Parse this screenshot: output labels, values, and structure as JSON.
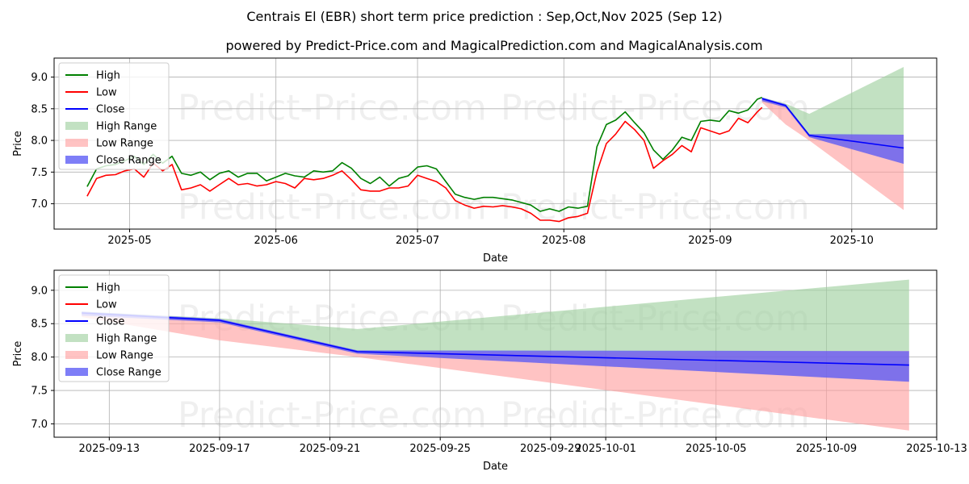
{
  "titles": {
    "line1": "Centrais El (EBR) short term price prediction : Sep,Oct,Nov 2025 (Sep 12)",
    "line2": "powered by Predict-Price.com and MagicalPrediction.com and MagicalAnalysis.com"
  },
  "watermark": "Predict-Price.com",
  "colors": {
    "high": "#008000",
    "low": "#ff0000",
    "close": "#0000ff",
    "high_range": "#9ccf9c",
    "low_range": "#ff9e9e",
    "close_range": "#5a5af5"
  },
  "chart_data": [
    {
      "type": "line",
      "xlabel": "Date",
      "ylabel": "Price",
      "ylim": [
        6.6,
        9.3
      ],
      "yticks": [
        "7.0",
        "7.5",
        "8.0",
        "8.5",
        "9.0"
      ],
      "xticks": [
        "2025-05",
        "2025-06",
        "2025-07",
        "2025-08",
        "2025-09",
        "2025-10"
      ],
      "xlim": [
        "2025-04-15",
        "2025-10-19"
      ],
      "grid": true,
      "legend_position": "upper-left",
      "legend": [
        "High",
        "Low",
        "Close",
        "High Range",
        "Low Range",
        "Close Range"
      ],
      "series": [
        {
          "name": "High",
          "x": [
            "2025-04-22",
            "2025-04-24",
            "2025-04-26",
            "2025-04-28",
            "2025-04-30",
            "2025-05-02",
            "2025-05-04",
            "2025-05-06",
            "2025-05-08",
            "2025-05-10",
            "2025-05-12",
            "2025-05-14",
            "2025-05-16",
            "2025-05-18",
            "2025-05-20",
            "2025-05-22",
            "2025-05-24",
            "2025-05-26",
            "2025-05-28",
            "2025-05-30",
            "2025-06-01",
            "2025-06-03",
            "2025-06-05",
            "2025-06-07",
            "2025-06-09",
            "2025-06-11",
            "2025-06-13",
            "2025-06-15",
            "2025-06-17",
            "2025-06-19",
            "2025-06-21",
            "2025-06-23",
            "2025-06-25",
            "2025-06-27",
            "2025-06-29",
            "2025-07-01",
            "2025-07-03",
            "2025-07-05",
            "2025-07-07",
            "2025-07-09",
            "2025-07-11",
            "2025-07-13",
            "2025-07-15",
            "2025-07-17",
            "2025-07-19",
            "2025-07-21",
            "2025-07-23",
            "2025-07-25",
            "2025-07-27",
            "2025-07-29",
            "2025-07-31",
            "2025-08-02",
            "2025-08-04",
            "2025-08-06",
            "2025-08-08",
            "2025-08-10",
            "2025-08-12",
            "2025-08-14",
            "2025-08-16",
            "2025-08-18",
            "2025-08-20",
            "2025-08-22",
            "2025-08-24",
            "2025-08-26",
            "2025-08-28",
            "2025-08-30",
            "2025-09-01",
            "2025-09-03",
            "2025-09-05",
            "2025-09-07",
            "2025-09-09",
            "2025-09-11",
            "2025-09-12"
          ],
          "values": [
            7.27,
            7.55,
            7.6,
            7.62,
            7.68,
            7.75,
            7.62,
            7.78,
            7.64,
            7.75,
            7.48,
            7.45,
            7.5,
            7.38,
            7.48,
            7.52,
            7.42,
            7.48,
            7.48,
            7.36,
            7.42,
            7.48,
            7.44,
            7.42,
            7.52,
            7.5,
            7.52,
            7.65,
            7.56,
            7.4,
            7.32,
            7.42,
            7.28,
            7.4,
            7.44,
            7.58,
            7.6,
            7.55,
            7.35,
            7.15,
            7.1,
            7.07,
            7.1,
            7.1,
            7.08,
            7.06,
            7.02,
            6.98,
            6.88,
            6.92,
            6.88,
            6.95,
            6.93,
            6.96,
            7.9,
            8.25,
            8.32,
            8.45,
            8.28,
            8.12,
            7.85,
            7.7,
            7.85,
            8.05,
            8.0,
            8.3,
            8.32,
            8.3,
            8.47,
            8.43,
            8.48,
            8.65,
            8.68
          ]
        },
        {
          "name": "Low",
          "x": [
            "2025-04-22",
            "2025-04-24",
            "2025-04-26",
            "2025-04-28",
            "2025-04-30",
            "2025-05-02",
            "2025-05-04",
            "2025-05-06",
            "2025-05-08",
            "2025-05-10",
            "2025-05-12",
            "2025-05-14",
            "2025-05-16",
            "2025-05-18",
            "2025-05-20",
            "2025-05-22",
            "2025-05-24",
            "2025-05-26",
            "2025-05-28",
            "2025-05-30",
            "2025-06-01",
            "2025-06-03",
            "2025-06-05",
            "2025-06-07",
            "2025-06-09",
            "2025-06-11",
            "2025-06-13",
            "2025-06-15",
            "2025-06-17",
            "2025-06-19",
            "2025-06-21",
            "2025-06-23",
            "2025-06-25",
            "2025-06-27",
            "2025-06-29",
            "2025-07-01",
            "2025-07-03",
            "2025-07-05",
            "2025-07-07",
            "2025-07-09",
            "2025-07-11",
            "2025-07-13",
            "2025-07-15",
            "2025-07-17",
            "2025-07-19",
            "2025-07-21",
            "2025-07-23",
            "2025-07-25",
            "2025-07-27",
            "2025-07-29",
            "2025-07-31",
            "2025-08-02",
            "2025-08-04",
            "2025-08-06",
            "2025-08-08",
            "2025-08-10",
            "2025-08-12",
            "2025-08-14",
            "2025-08-16",
            "2025-08-18",
            "2025-08-20",
            "2025-08-22",
            "2025-08-24",
            "2025-08-26",
            "2025-08-28",
            "2025-08-30",
            "2025-09-01",
            "2025-09-03",
            "2025-09-05",
            "2025-09-07",
            "2025-09-09",
            "2025-09-11",
            "2025-09-12"
          ],
          "values": [
            7.12,
            7.4,
            7.45,
            7.46,
            7.52,
            7.55,
            7.42,
            7.64,
            7.52,
            7.62,
            7.22,
            7.25,
            7.3,
            7.2,
            7.3,
            7.4,
            7.3,
            7.32,
            7.28,
            7.3,
            7.35,
            7.32,
            7.25,
            7.4,
            7.38,
            7.4,
            7.45,
            7.52,
            7.38,
            7.22,
            7.2,
            7.2,
            7.25,
            7.25,
            7.28,
            7.45,
            7.4,
            7.35,
            7.25,
            7.05,
            6.98,
            6.93,
            6.96,
            6.95,
            6.97,
            6.95,
            6.92,
            6.85,
            6.74,
            6.74,
            6.72,
            6.78,
            6.8,
            6.85,
            7.5,
            7.95,
            8.1,
            8.3,
            8.17,
            8.0,
            7.56,
            7.68,
            7.78,
            7.92,
            7.82,
            8.2,
            8.15,
            8.1,
            8.15,
            8.35,
            8.28,
            8.45,
            8.52
          ]
        },
        {
          "name": "Close",
          "x": [
            "2025-09-12",
            "2025-09-17",
            "2025-09-22",
            "2025-10-12"
          ],
          "values": [
            8.66,
            8.55,
            8.08,
            7.88
          ]
        }
      ],
      "ranges": [
        {
          "name": "High Range",
          "x": [
            "2025-09-12",
            "2025-09-17",
            "2025-09-22",
            "2025-10-12"
          ],
          "upper": [
            8.68,
            8.58,
            8.42,
            9.16
          ],
          "lower": [
            8.66,
            8.55,
            8.08,
            8.09
          ]
        },
        {
          "name": "Low Range",
          "x": [
            "2025-09-12",
            "2025-09-17",
            "2025-09-22",
            "2025-10-12"
          ],
          "upper": [
            8.66,
            8.55,
            8.08,
            8.09
          ],
          "lower": [
            8.6,
            8.25,
            8.0,
            6.9
          ]
        },
        {
          "name": "Close Range",
          "x": [
            "2025-09-12",
            "2025-09-17",
            "2025-09-22",
            "2025-10-12"
          ],
          "upper": [
            8.68,
            8.57,
            8.1,
            8.09
          ],
          "lower": [
            8.62,
            8.52,
            8.05,
            7.63
          ]
        }
      ]
    },
    {
      "type": "line",
      "xlabel": "Date",
      "ylabel": "Price",
      "ylim": [
        6.8,
        9.3
      ],
      "yticks": [
        "7.0",
        "7.5",
        "8.0",
        "8.5",
        "9.0"
      ],
      "xticks": [
        "2025-09-13",
        "2025-09-17",
        "2025-09-21",
        "2025-09-25",
        "2025-09-29",
        "2025-10-01",
        "2025-10-05",
        "2025-10-09",
        "2025-10-13"
      ],
      "xlim": [
        "2025-09-11",
        "2025-10-13"
      ],
      "grid": true,
      "legend_position": "upper-left",
      "legend": [
        "High",
        "Low",
        "Close",
        "High Range",
        "Low Range",
        "Close Range"
      ],
      "series": [
        {
          "name": "Close",
          "x": [
            "2025-09-12",
            "2025-09-17",
            "2025-09-22",
            "2025-10-12"
          ],
          "values": [
            8.66,
            8.55,
            8.08,
            7.88
          ]
        }
      ],
      "ranges": [
        {
          "name": "High Range",
          "x": [
            "2025-09-12",
            "2025-09-17",
            "2025-09-22",
            "2025-10-12"
          ],
          "upper": [
            8.68,
            8.58,
            8.42,
            9.16
          ],
          "lower": [
            8.66,
            8.55,
            8.08,
            8.09
          ]
        },
        {
          "name": "Low Range",
          "x": [
            "2025-09-12",
            "2025-09-17",
            "2025-09-22",
            "2025-10-12"
          ],
          "upper": [
            8.66,
            8.55,
            8.08,
            8.09
          ],
          "lower": [
            8.6,
            8.25,
            8.0,
            6.9
          ]
        },
        {
          "name": "Close Range",
          "x": [
            "2025-09-12",
            "2025-09-17",
            "2025-09-22",
            "2025-10-12"
          ],
          "upper": [
            8.68,
            8.57,
            8.1,
            8.09
          ],
          "lower": [
            8.62,
            8.52,
            8.05,
            7.63
          ]
        }
      ]
    }
  ]
}
